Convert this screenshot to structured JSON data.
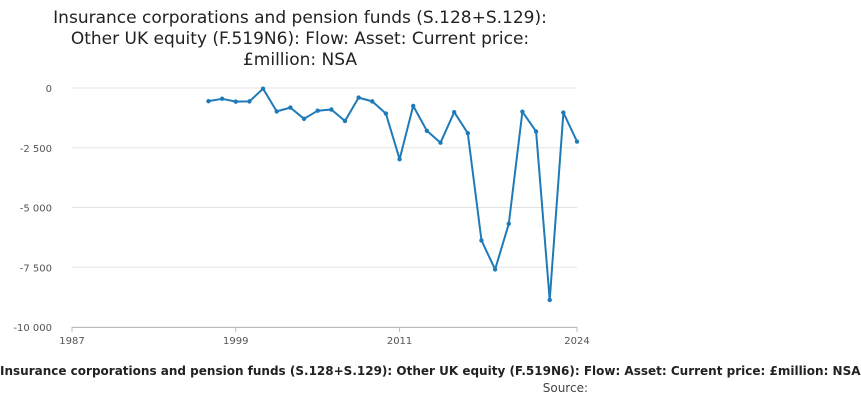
{
  "chart_data": {
    "type": "line",
    "title_lines": [
      "Insurance corporations and pension funds (S.128+S.129):",
      "Other UK equity (F.519N6): Flow: Asset: Current price:",
      "£million: NSA"
    ],
    "xlabel": "",
    "ylabel": "",
    "x_ticks": [
      "1987",
      "1999",
      "2011",
      "2024"
    ],
    "y_ticks": [
      "0",
      "-2 500",
      "-5 000",
      "-7 500",
      "-10 000"
    ],
    "y_tick_values": [
      0,
      -2500,
      -5000,
      -7500,
      -10000
    ],
    "xlim": [
      1987,
      2024
    ],
    "ylim": [
      -10000,
      0
    ],
    "grid": true,
    "series": [
      {
        "color": "#1f7ab8",
        "x": [
          1997,
          1998,
          1999,
          2000,
          2001,
          2002,
          2003,
          2004,
          2005,
          2006,
          2007,
          2008,
          2009,
          2010,
          2011,
          2012,
          2013,
          2014,
          2015,
          2016,
          2017,
          2018,
          2019,
          2020,
          2021,
          2022,
          2023,
          2024
        ],
        "values": [
          -550,
          -450,
          -570,
          -560,
          -30,
          -980,
          -820,
          -1290,
          -950,
          -900,
          -1380,
          -400,
          -560,
          -1070,
          -2980,
          -750,
          -1790,
          -2290,
          -1010,
          -1890,
          -6380,
          -7590,
          -5680,
          -990,
          -1820,
          -8870,
          -1030,
          -2240
        ]
      }
    ]
  },
  "footer": {
    "series_caption": "Insurance corporations and pension funds (S.128+S.129): Other UK equity (F.519N6): Flow: Asset: Current price: £million: NSA",
    "source": "Source:"
  }
}
